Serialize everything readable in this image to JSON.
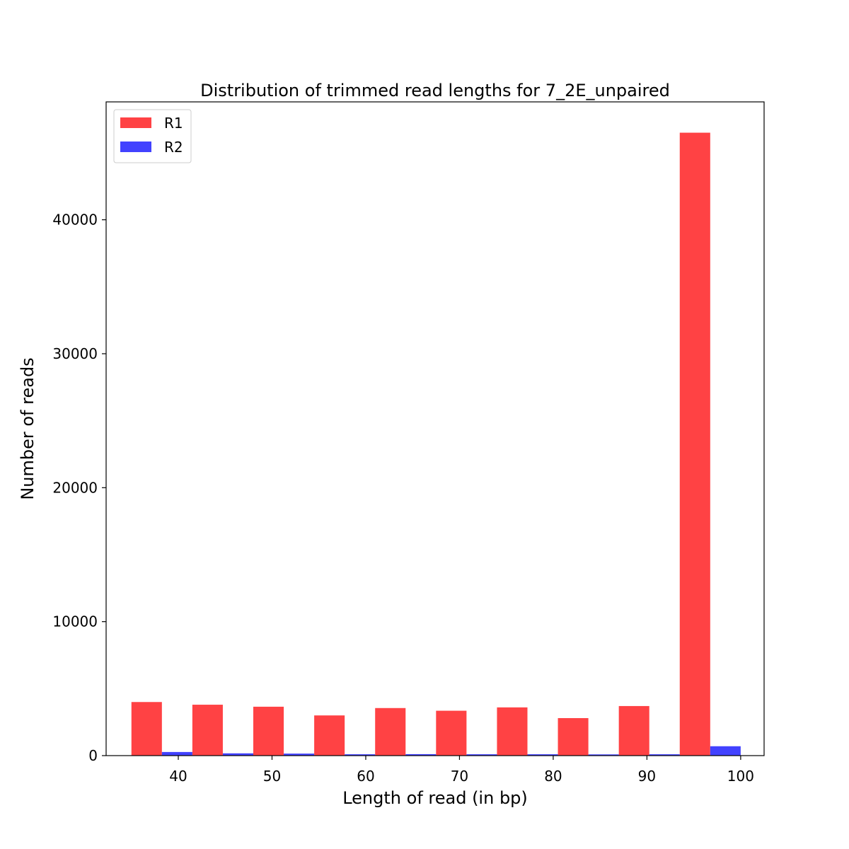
{
  "chart_data": {
    "type": "bar",
    "title": "Distribution of trimmed read lengths for 7_2E_unpaired",
    "xlabel": "Length of read (in bp)",
    "ylabel": "Number of reads",
    "xlim": [
      32.3,
      102.5
    ],
    "ylim": [
      0,
      48800
    ],
    "x_ticks": [
      40,
      50,
      60,
      70,
      80,
      90,
      100
    ],
    "y_ticks": [
      0,
      10000,
      20000,
      30000,
      40000
    ],
    "grid": false,
    "legend_position": "top-left",
    "bin_starts": [
      35.0,
      41.5,
      48.0,
      54.5,
      61.0,
      67.5,
      74.0,
      80.5,
      87.0,
      93.5
    ],
    "bin_width": 6.5,
    "series": [
      {
        "name": "R1",
        "color": "#ff4244",
        "values": [
          4000,
          3800,
          3650,
          3000,
          3550,
          3350,
          3600,
          2800,
          3700,
          46500
        ]
      },
      {
        "name": "R2",
        "color": "#4242ff",
        "values": [
          270,
          170,
          150,
          100,
          110,
          100,
          100,
          90,
          100,
          700
        ]
      }
    ]
  }
}
